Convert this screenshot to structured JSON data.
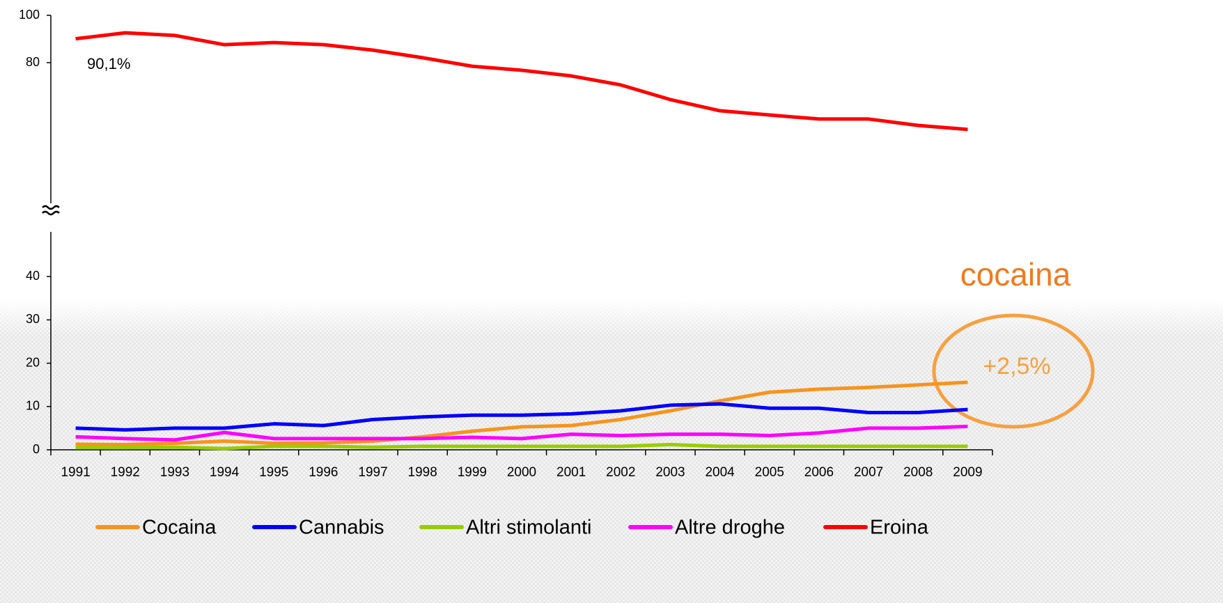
{
  "chart_data": {
    "type": "line",
    "categories": [
      "1991",
      "1992",
      "1993",
      "1994",
      "1995",
      "1996",
      "1997",
      "1998",
      "1999",
      "2000",
      "2001",
      "2002",
      "2003",
      "2004",
      "2005",
      "2006",
      "2007",
      "2008",
      "2009"
    ],
    "series": [
      {
        "name": "Cocaina",
        "color": "#f7941d",
        "values": [
          1.3,
          1.2,
          1.5,
          2.0,
          1.5,
          1.6,
          2.0,
          3.0,
          4.3,
          5.3,
          5.6,
          7.0,
          9.0,
          11.3,
          13.3,
          14.0,
          14.4,
          15.0,
          15.6
        ]
      },
      {
        "name": "Cannabis",
        "color": "#0000ff",
        "values": [
          5.0,
          4.6,
          5.0,
          5.0,
          6.0,
          5.6,
          7.0,
          7.6,
          8.0,
          8.0,
          8.3,
          9.0,
          10.3,
          10.6,
          9.6,
          9.6,
          8.6,
          8.6,
          9.3
        ]
      },
      {
        "name": "Altri stimolanti",
        "color": "#99cc00",
        "values": [
          0.5,
          0.5,
          0.6,
          0.3,
          0.8,
          0.8,
          0.6,
          0.8,
          0.8,
          0.8,
          0.8,
          0.8,
          1.2,
          0.8,
          0.8,
          0.8,
          0.8,
          0.8,
          0.8
        ]
      },
      {
        "name": "Altre droghe",
        "color": "#ff00ff",
        "values": [
          3.0,
          2.6,
          2.3,
          4.0,
          2.6,
          2.6,
          2.6,
          2.6,
          2.9,
          2.6,
          3.6,
          3.3,
          3.6,
          3.6,
          3.3,
          3.9,
          5.0,
          5.0,
          5.4
        ]
      },
      {
        "name": "Eroina",
        "color": "#ff0000",
        "axis": "y2",
        "values": [
          90.1,
          92.6,
          91.5,
          87.6,
          88.5,
          87.6,
          85.3,
          82.1,
          78.5,
          76.8,
          74.4,
          70.6,
          64.4,
          59.7,
          57.9,
          56.2,
          56.2,
          53.5,
          51.8
        ]
      }
    ],
    "ylim": [
      0,
      50
    ],
    "yticks": [
      0,
      10,
      20,
      30,
      40
    ],
    "y2lim": [
      20,
      100
    ],
    "y2ticks": [
      80,
      100
    ],
    "legend": "bottom",
    "annotations": [
      "90,1%",
      "cocaina",
      "+2,5%"
    ]
  }
}
